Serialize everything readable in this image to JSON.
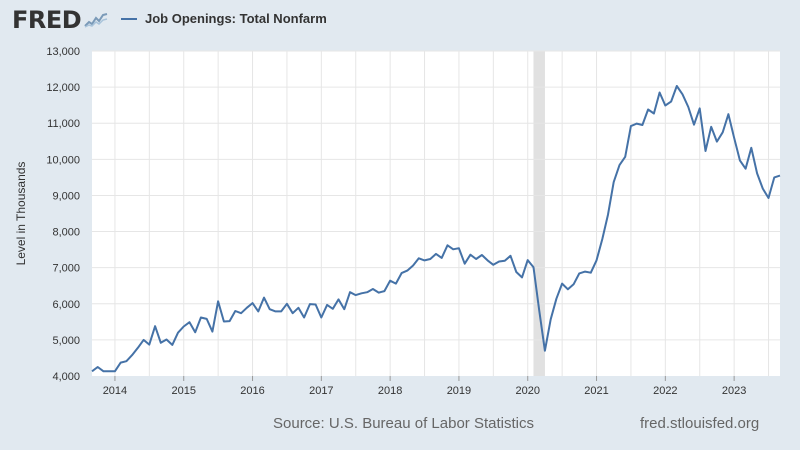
{
  "header": {
    "logo_text": "FRED",
    "logo_icon": "spark-chart-icon",
    "legend_label": "Job Openings: Total Nonfarm"
  },
  "colors": {
    "line": "#4572a7",
    "recession": "#e1e1e1",
    "background": "#e1e9f0",
    "plot": "#ffffff"
  },
  "footer": {
    "source": "Source: U.S. Bureau of Labor Statistics",
    "site": "fred.stlouisfed.org"
  },
  "chart_data": {
    "type": "line",
    "title": "",
    "xlabel": "",
    "ylabel": "Level in Thousands",
    "ylim": [
      4000,
      13000
    ],
    "xlim": [
      "2013-09",
      "2023-09"
    ],
    "yticks": [
      4000,
      5000,
      6000,
      7000,
      8000,
      9000,
      10000,
      11000,
      12000,
      13000
    ],
    "ytick_labels": [
      "4,000",
      "5,000",
      "6,000",
      "7,000",
      "8,000",
      "9,000",
      "10,000",
      "11,000",
      "12,000",
      "13,000"
    ],
    "xtick_labels": [
      "2014",
      "2015",
      "2016",
      "2017",
      "2018",
      "2019",
      "2020",
      "2021",
      "2022",
      "2023"
    ],
    "grid": true,
    "legend": "top-left",
    "recession": {
      "start": "2020-02",
      "end": "2020-04"
    },
    "series": [
      {
        "name": "Job Openings: Total Nonfarm",
        "x": [
          "2013-09",
          "2013-10",
          "2013-11",
          "2013-12",
          "2014-01",
          "2014-02",
          "2014-03",
          "2014-04",
          "2014-05",
          "2014-06",
          "2014-07",
          "2014-08",
          "2014-09",
          "2014-10",
          "2014-11",
          "2014-12",
          "2015-01",
          "2015-02",
          "2015-03",
          "2015-04",
          "2015-05",
          "2015-06",
          "2015-07",
          "2015-08",
          "2015-09",
          "2015-10",
          "2015-11",
          "2015-12",
          "2016-01",
          "2016-02",
          "2016-03",
          "2016-04",
          "2016-05",
          "2016-06",
          "2016-07",
          "2016-08",
          "2016-09",
          "2016-10",
          "2016-11",
          "2016-12",
          "2017-01",
          "2017-02",
          "2017-03",
          "2017-04",
          "2017-05",
          "2017-06",
          "2017-07",
          "2017-08",
          "2017-09",
          "2017-10",
          "2017-11",
          "2017-12",
          "2018-01",
          "2018-02",
          "2018-03",
          "2018-04",
          "2018-05",
          "2018-06",
          "2018-07",
          "2018-08",
          "2018-09",
          "2018-10",
          "2018-11",
          "2018-12",
          "2019-01",
          "2019-02",
          "2019-03",
          "2019-04",
          "2019-05",
          "2019-06",
          "2019-07",
          "2019-08",
          "2019-09",
          "2019-10",
          "2019-11",
          "2019-12",
          "2020-01",
          "2020-02",
          "2020-03",
          "2020-04",
          "2020-05",
          "2020-06",
          "2020-07",
          "2020-08",
          "2020-09",
          "2020-10",
          "2020-11",
          "2020-12",
          "2021-01",
          "2021-02",
          "2021-03",
          "2021-04",
          "2021-05",
          "2021-06",
          "2021-07",
          "2021-08",
          "2021-09",
          "2021-10",
          "2021-11",
          "2021-12",
          "2022-01",
          "2022-02",
          "2022-03",
          "2022-04",
          "2022-05",
          "2022-06",
          "2022-07",
          "2022-08",
          "2022-09",
          "2022-10",
          "2022-11",
          "2022-12",
          "2023-01",
          "2023-02",
          "2023-03",
          "2023-04",
          "2023-05",
          "2023-06",
          "2023-07",
          "2023-08",
          "2023-09"
        ],
        "values": [
          4130,
          4250,
          4130,
          4130,
          4130,
          4370,
          4410,
          4580,
          4780,
          5000,
          4870,
          5380,
          4920,
          5010,
          4860,
          5200,
          5370,
          5490,
          5210,
          5620,
          5580,
          5230,
          6070,
          5510,
          5520,
          5800,
          5740,
          5890,
          6020,
          5790,
          6170,
          5850,
          5790,
          5790,
          6000,
          5740,
          5890,
          5620,
          5990,
          5980,
          5620,
          5970,
          5860,
          6120,
          5850,
          6320,
          6240,
          6290,
          6320,
          6410,
          6310,
          6350,
          6640,
          6560,
          6850,
          6920,
          7060,
          7260,
          7200,
          7240,
          7380,
          7270,
          7620,
          7510,
          7540,
          7110,
          7360,
          7240,
          7350,
          7200,
          7080,
          7170,
          7190,
          7330,
          6880,
          6730,
          7210,
          7010,
          5820,
          4700,
          5570,
          6140,
          6560,
          6400,
          6540,
          6840,
          6890,
          6860,
          7200,
          7790,
          8470,
          9370,
          9840,
          10070,
          10920,
          10990,
          10950,
          11380,
          11270,
          11850,
          11490,
          11600,
          12030,
          11800,
          11450,
          10960,
          11410,
          10230,
          10900,
          10490,
          10750,
          11250,
          10600,
          9970,
          9740,
          10320,
          9610,
          9190,
          8930,
          9500,
          9550
        ]
      }
    ]
  }
}
